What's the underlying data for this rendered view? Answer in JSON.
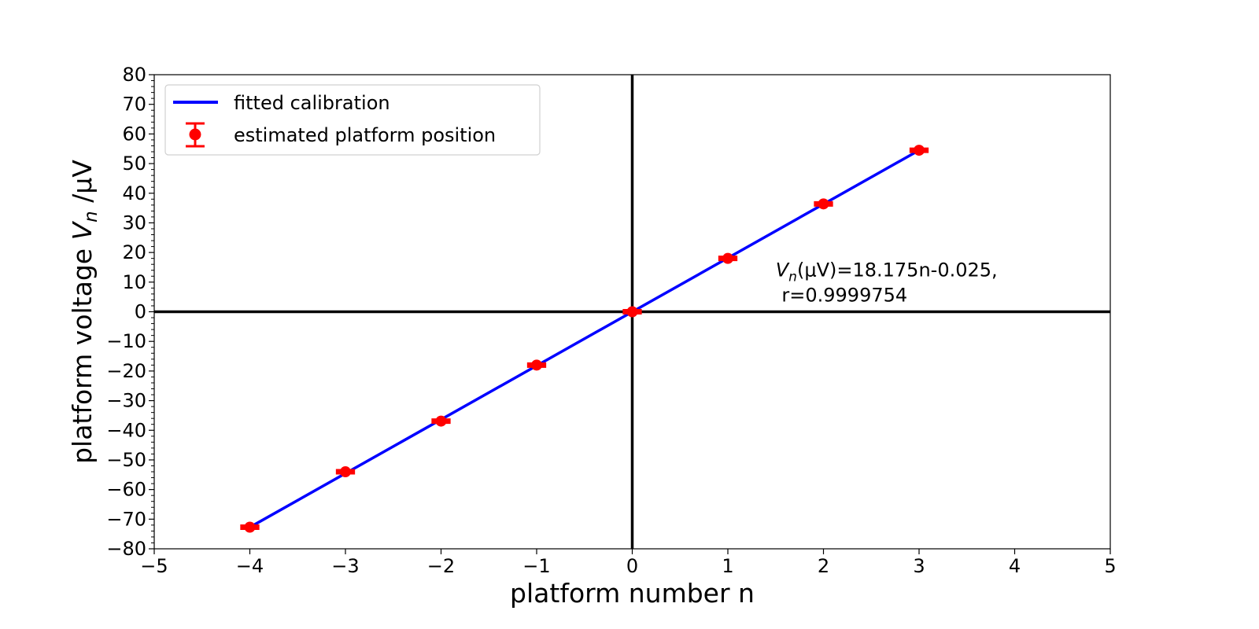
{
  "chart_data": {
    "type": "scatter",
    "xlabel": "platform number n",
    "ylabel_main": "platform voltage ",
    "ylabel_var": "V",
    "ylabel_sub": "n",
    "ylabel_unit": " /μV",
    "xlim": [
      -5,
      5
    ],
    "ylim": [
      -80,
      80
    ],
    "x_ticks": [
      -5,
      -4,
      -3,
      -2,
      -1,
      0,
      1,
      2,
      3,
      4,
      5
    ],
    "y_ticks": [
      -80,
      -70,
      -60,
      -50,
      -40,
      -30,
      -20,
      -10,
      0,
      10,
      20,
      30,
      40,
      50,
      60,
      70,
      80
    ],
    "x_tick_labels": [
      "−5",
      "−4",
      "−3",
      "−2",
      "−1",
      "0",
      "1",
      "2",
      "3",
      "4",
      "5"
    ],
    "y_tick_labels": [
      "−80",
      "−70",
      "−60",
      "−50",
      "−40",
      "−30",
      "−20",
      "−10",
      "0",
      "10",
      "20",
      "30",
      "40",
      "50",
      "60",
      "70",
      "80"
    ],
    "y_minor_step": 2,
    "reference_lines": {
      "x": 0,
      "y": 0,
      "color": "#000000"
    },
    "legend_position": "top-left",
    "series": [
      {
        "name": "fitted calibration",
        "kind": "line",
        "color": "#0000ff",
        "slope": 18.175,
        "intercept": -0.025,
        "x_range": [
          -4,
          3
        ]
      },
      {
        "name": "estimated platform position",
        "kind": "errorbar",
        "color": "#ff0000",
        "x": [
          -4,
          -3,
          -2,
          -1,
          0,
          1,
          2,
          3
        ],
        "y": [
          -72.7,
          -54.0,
          -36.9,
          -18.0,
          0.0,
          18.0,
          36.4,
          54.5
        ],
        "xerr": 0.1
      }
    ],
    "annotation": {
      "var": "V",
      "sub": "n",
      "rest": "(μV)=18.175n-0.025,",
      "line2": " r=0.9999754",
      "x": 1.5,
      "y": 12
    }
  }
}
